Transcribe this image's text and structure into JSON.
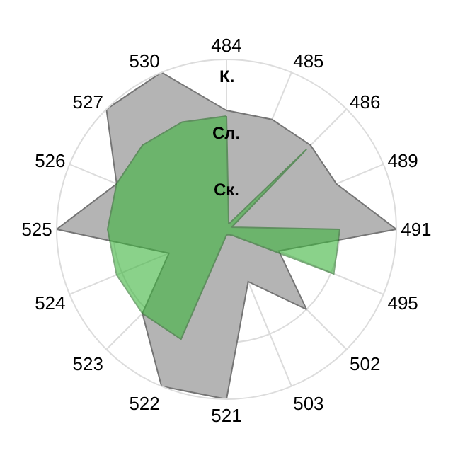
{
  "chart_data": {
    "type": "radar",
    "categories": [
      "484",
      "485",
      "486",
      "489",
      "491",
      "495",
      "502",
      "503",
      "521",
      "522",
      "523",
      "524",
      "525",
      "526",
      "527",
      "530"
    ],
    "ylim": [
      0,
      3
    ],
    "yticks": [
      {
        "value": 1,
        "label": "Ск."
      },
      {
        "value": 2,
        "label": "Сл."
      },
      {
        "value": 3,
        "label": "К."
      }
    ],
    "grid": true,
    "marker": "none",
    "series": [
      {
        "color": "#b4b4b4",
        "values": [
          2.1,
          2.1,
          2.1,
          2.1,
          3.0,
          1.0,
          2.0,
          1.0,
          3.0,
          3.0,
          2.1,
          1.1,
          3.0,
          2.1,
          3.0,
          3.0
        ]
      },
      {
        "color": "#3cb43c",
        "values": [
          2.0,
          0.1,
          2.0,
          0.1,
          2.0,
          2.05,
          0.15,
          0.1,
          0.1,
          2.1,
          2.1,
          2.1,
          2.1,
          2.1,
          2.1,
          2.05
        ]
      }
    ]
  }
}
